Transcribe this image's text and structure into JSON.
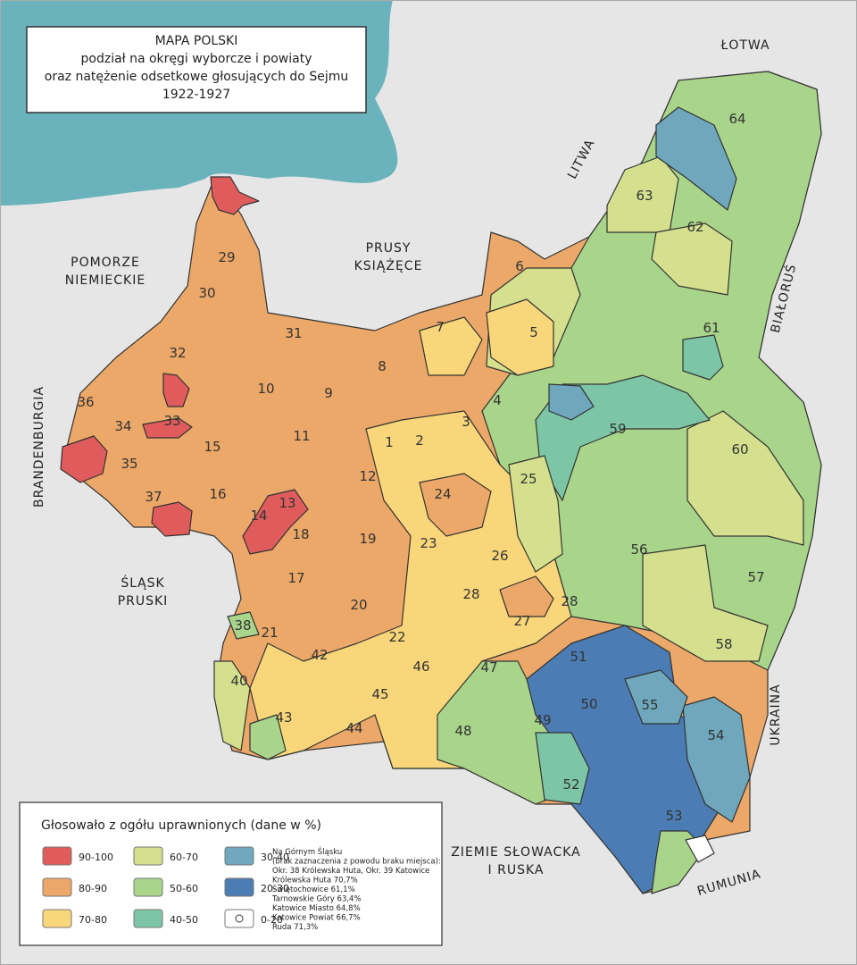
{
  "title": [
    "MAPA POLSKI",
    "podział na okręgi wyborcze i powiaty",
    "oraz natężenie odsetkowe głosujących do Sejmu",
    "1922-1927"
  ],
  "neighbors": [
    [
      "ŁOTWA"
    ],
    [
      "LITWA"
    ],
    [
      "PRUSY",
      "KSIĄŻĘCE"
    ],
    [
      "POMORZE",
      "NIEMIECKIE"
    ],
    [
      "BRANDENBURGIA"
    ],
    [
      "ŚLĄSK",
      "PRUSKI"
    ],
    [
      "ZIEMIE SŁOWACKA",
      "I RUSKA"
    ],
    [
      "RUMUNIA"
    ],
    [
      "UKRAINA"
    ],
    [
      "BIAŁORUŚ"
    ]
  ],
  "districts": [
    "1",
    "2",
    "3",
    "4",
    "5",
    "6",
    "7",
    "8",
    "9",
    "10",
    "11",
    "12",
    "13",
    "14",
    "15",
    "16",
    "17",
    "18",
    "19",
    "20",
    "21",
    "22",
    "23",
    "24",
    "25",
    "26",
    "27",
    "28",
    "28",
    "29",
    "30",
    "31",
    "32",
    "33",
    "34",
    "35",
    "36",
    "37",
    "38",
    "40",
    "42",
    "43",
    "44",
    "45",
    "46",
    "47",
    "48",
    "49",
    "50",
    "51",
    "52",
    "53",
    "54",
    "55",
    "56",
    "57",
    "58",
    "59",
    "60",
    "61",
    "62",
    "63",
    "64"
  ],
  "legend": {
    "title": "Głosowało z ogółu uprawnionych (dane w %)",
    "items": [
      {
        "label": "90-100",
        "color": "#e05c5c"
      },
      {
        "label": "80-90",
        "color": "#eca868"
      },
      {
        "label": "70-80",
        "color": "#f8d679"
      },
      {
        "label": "60-70",
        "color": "#d4e08e"
      },
      {
        "label": "50-60",
        "color": "#a9d58b"
      },
      {
        "label": "40-50",
        "color": "#7cc6a6"
      },
      {
        "label": "30-40",
        "color": "#6fa7bc"
      },
      {
        "label": "20-30",
        "color": "#4b7cb3"
      },
      {
        "label": "0-20",
        "color": "#ffffff"
      }
    ]
  },
  "note": [
    "Na Górnym Śląsku",
    "(brak zaznaczenia z powodu braku miejsca):",
    "Okr. 38 Królewska Huta, Okr. 39 Katowice",
    "Królewska Huta 70,7%",
    "Świętochowice 61,1%",
    "Tarnowskie Góry 63,4%",
    "Katowice Miasto 64,8%",
    "Katowice Powiat 66,7%",
    "Ruda 71,3%"
  ]
}
